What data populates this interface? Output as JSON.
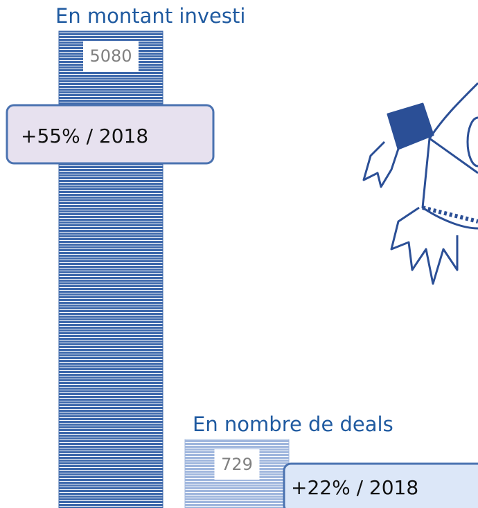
{
  "chart_data": {
    "type": "bar",
    "categories": [
      "En montant investi",
      "En nombre de deals"
    ],
    "values": [
      5080,
      729
    ],
    "annotations": [
      "+55% / 2018",
      "+22% / 2018"
    ],
    "colors": [
      "#3d68ab",
      "#9fb6dd"
    ],
    "annotation_fills": [
      "#e7e1ef",
      "#dce7f8"
    ]
  }
}
